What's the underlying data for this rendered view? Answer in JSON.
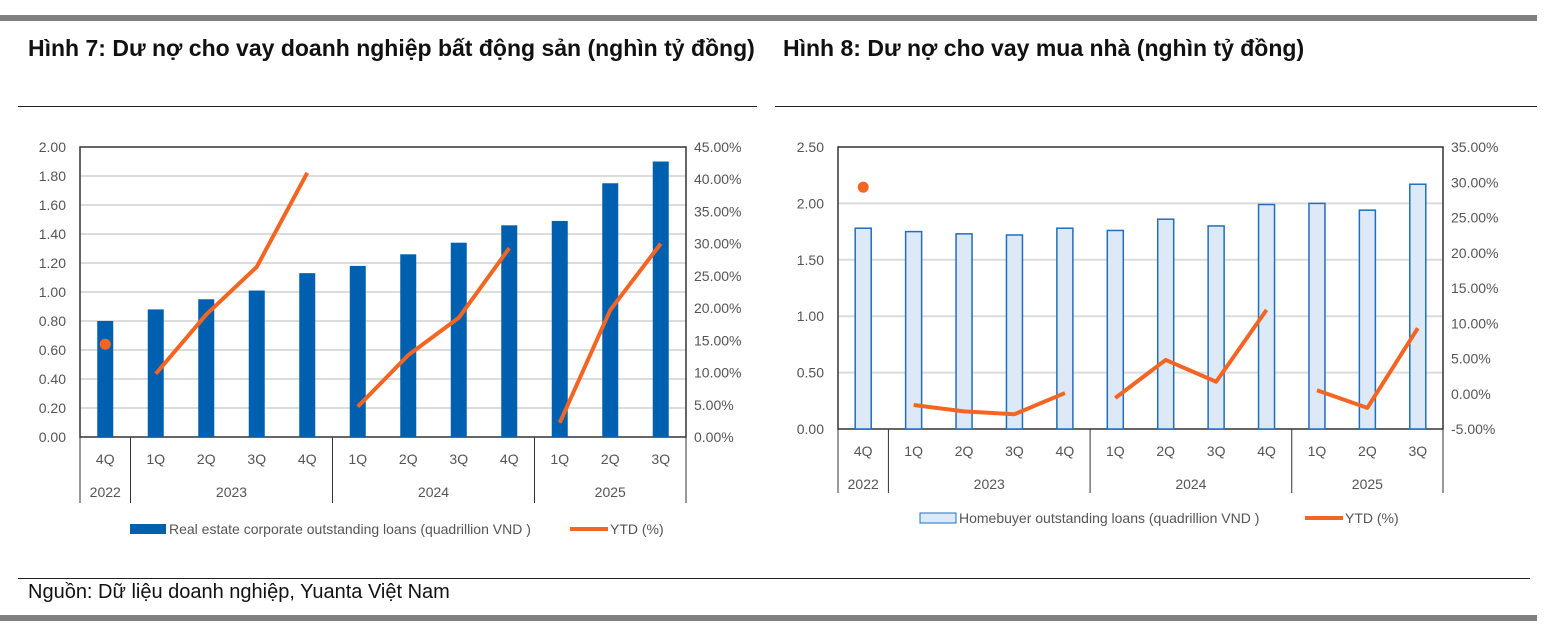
{
  "figure7_title": "Hình 7: Dư nợ cho vay doanh nghiệp bất động sản (nghìn tỷ đồng)",
  "figure8_title": "Hình 8: Dư nợ cho vay mua nhà (nghìn tỷ đồng)",
  "source": "Nguồn: Dữ liệu doanh nghiệp, Yuanta Việt Nam",
  "colors": {
    "bar7": "#0060b0",
    "bar8_fill": "#dde9f6",
    "bar8_stroke": "#1f6fc0",
    "line": "#f26522"
  },
  "chart_data": [
    {
      "type": "bar",
      "categories": [
        "4Q",
        "1Q",
        "2Q",
        "3Q",
        "4Q",
        "1Q",
        "2Q",
        "3Q",
        "4Q",
        "1Q",
        "2Q",
        "3Q"
      ],
      "year_groups": [
        {
          "label": "2022",
          "count": 1
        },
        {
          "label": "2023",
          "count": 4
        },
        {
          "label": "2024",
          "count": 4
        },
        {
          "label": "2025",
          "count": 3
        }
      ],
      "series": [
        {
          "name": "Real estate corporate outstanding loans (quadrillion VND )",
          "axis": "left",
          "values": [
            0.8,
            0.88,
            0.95,
            1.01,
            1.13,
            1.18,
            1.26,
            1.34,
            1.46,
            1.49,
            1.75,
            1.9
          ]
        },
        {
          "name": "YTD (%)",
          "axis": "right",
          "type": "line",
          "values": [
            14.4,
            9.8,
            19.0,
            26.4,
            41.0,
            4.7,
            12.7,
            18.5,
            29.3,
            2.2,
            19.7,
            30.0
          ]
        }
      ],
      "ylim": [
        0,
        2.0
      ],
      "yticks": [
        "0.00",
        "0.20",
        "0.40",
        "0.60",
        "0.80",
        "1.00",
        "1.20",
        "1.40",
        "1.60",
        "1.80",
        "2.00"
      ],
      "y2lim": [
        0,
        45
      ],
      "y2ticks": [
        "0.00%",
        "5.00%",
        "10.00%",
        "15.00%",
        "20.00%",
        "25.00%",
        "30.00%",
        "35.00%",
        "40.00%",
        "45.00%"
      ],
      "legend": "bottom"
    },
    {
      "type": "bar",
      "categories": [
        "4Q",
        "1Q",
        "2Q",
        "3Q",
        "4Q",
        "1Q",
        "2Q",
        "3Q",
        "4Q",
        "1Q",
        "2Q",
        "3Q"
      ],
      "year_groups": [
        {
          "label": "2022",
          "count": 1
        },
        {
          "label": "2023",
          "count": 4
        },
        {
          "label": "2024",
          "count": 4
        },
        {
          "label": "2025",
          "count": 3
        }
      ],
      "series": [
        {
          "name": "Homebuyer outstanding loans (quadrillion VND )",
          "axis": "left",
          "values": [
            1.78,
            1.75,
            1.73,
            1.72,
            1.78,
            1.76,
            1.86,
            1.8,
            1.99,
            2.0,
            1.94,
            2.17
          ]
        },
        {
          "name": "YTD (%)",
          "axis": "right",
          "type": "line",
          "values": [
            29.3,
            -1.6,
            -2.5,
            -2.9,
            0.1,
            -0.6,
            4.8,
            1.7,
            11.9,
            0.5,
            -2.0,
            9.3
          ]
        }
      ],
      "ylim": [
        0,
        2.5
      ],
      "yticks": [
        "0.00",
        "0.50",
        "1.00",
        "1.50",
        "2.00",
        "2.50"
      ],
      "y2lim": [
        -5,
        35
      ],
      "y2ticks": [
        "-5.00%",
        "0.00%",
        "5.00%",
        "10.00%",
        "15.00%",
        "20.00%",
        "25.00%",
        "30.00%",
        "35.00%"
      ],
      "legend": "bottom"
    }
  ]
}
